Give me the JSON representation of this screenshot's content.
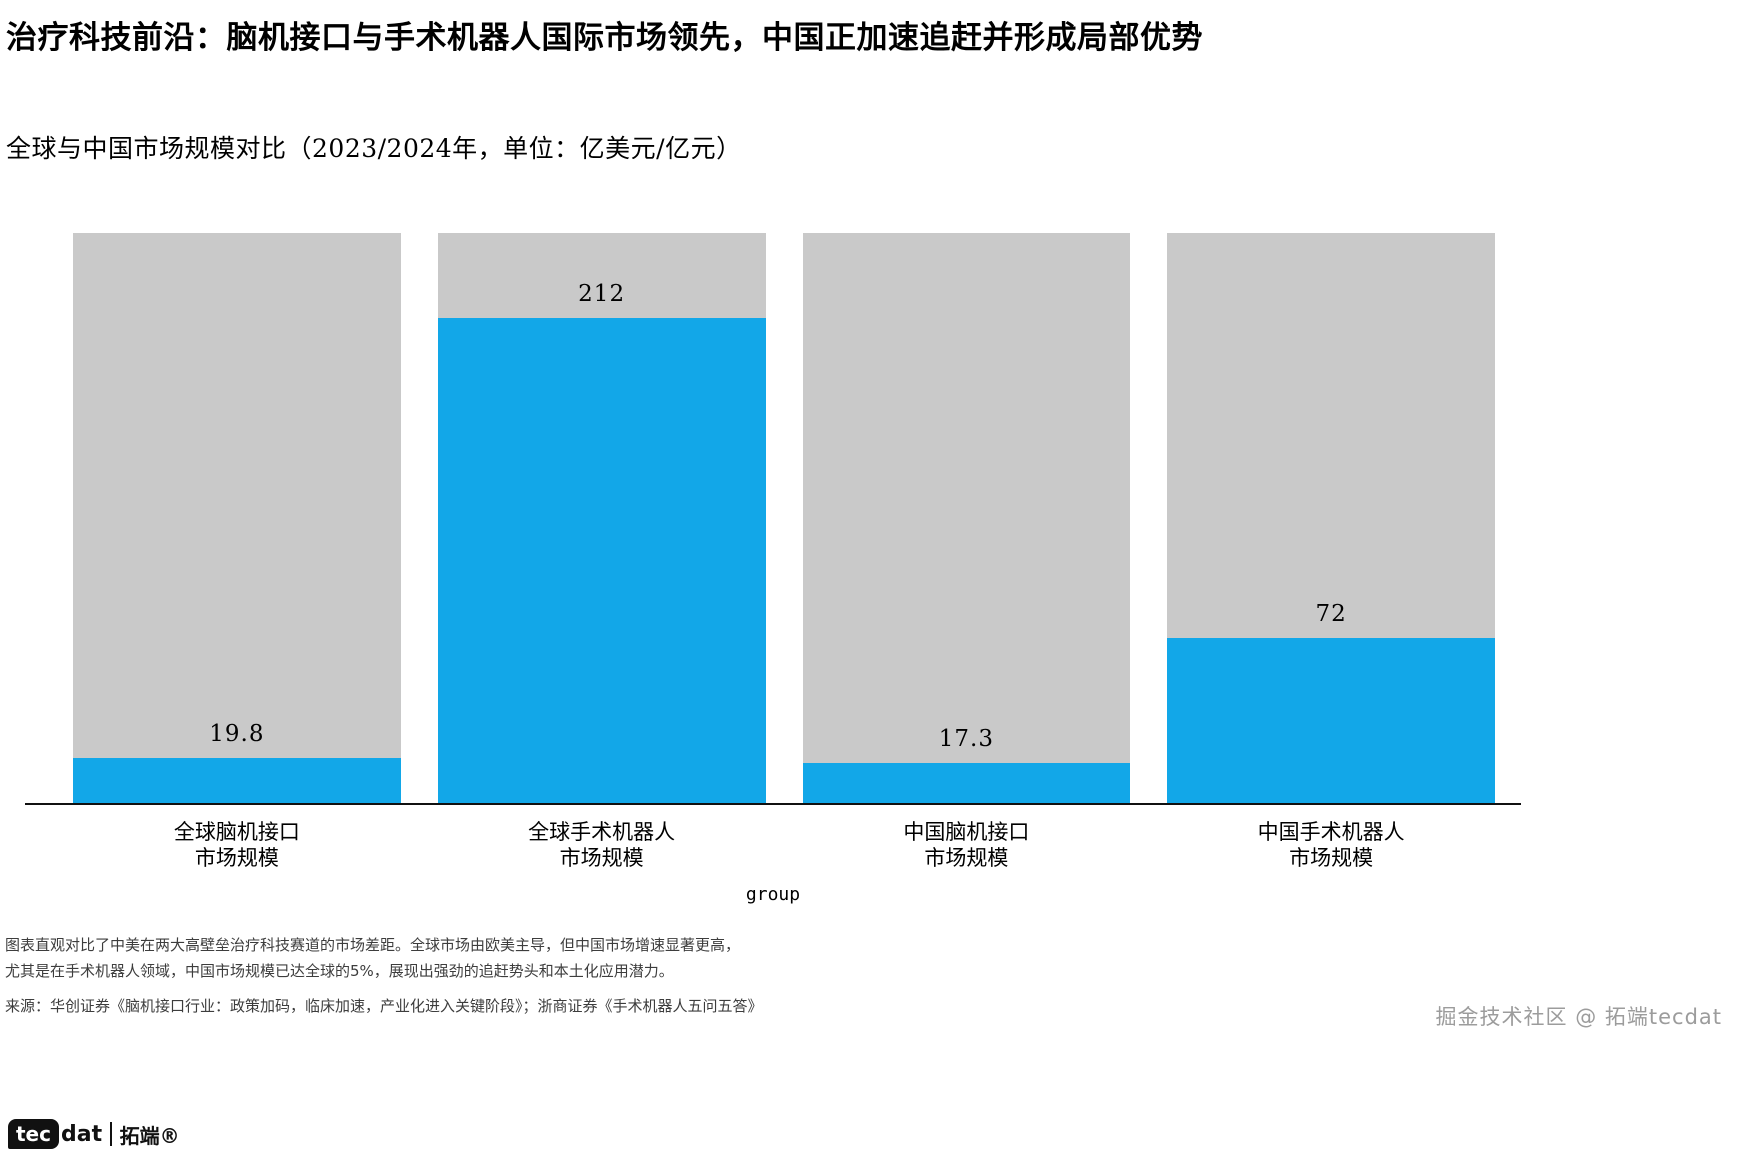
{
  "header": {
    "title": "治疗科技前沿：脑机接口与手术机器人国际市场领先，中国正加速追赶并形成局部优势",
    "subtitle": "全球与中国市场规模对比（2023/2024年，单位：亿美元/亿元）"
  },
  "chart_data": {
    "type": "bar",
    "categories": [
      {
        "line1": "全球脑机接口",
        "line2": "市场规模"
      },
      {
        "line1": "全球手术机器人",
        "line2": "市场规模"
      },
      {
        "line1": "中国脑机接口",
        "line2": "市场规模"
      },
      {
        "line1": "中国手术机器人",
        "line2": "市场规模"
      }
    ],
    "values": [
      19.8,
      212,
      17.3,
      72
    ],
    "value_labels": [
      "19.8",
      "212",
      "17.3",
      "72"
    ],
    "xlabel": "group",
    "ylabel": "",
    "ylim": [
      0,
      249
    ],
    "grid": false,
    "legend": "none",
    "bar_color": "#12a7e8",
    "track_color": "#c9c9c9"
  },
  "footnotes": {
    "line1": "图表直观对比了中美在两大高壁垒治疗科技赛道的市场差距。全球市场由欧美主导，但中国市场增速显著更高，",
    "line2": "尤其是在手术机器人领域，中国市场规模已达全球的5%，展现出强劲的追赶势头和本土化应用潜力。",
    "source": "来源：华创证券《脑机接口行业：政策加码，临床加速，产业化进入关键阶段》；浙商证券《手术机器人五问五答》"
  },
  "branding": {
    "logo_prefix": "tec",
    "logo_suffix": "dat",
    "logo_cn": "拓端®",
    "watermark": "掘金技术社区 @ 拓端tecdat"
  }
}
